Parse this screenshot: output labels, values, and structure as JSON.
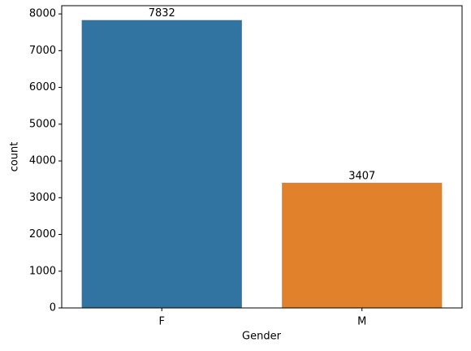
{
  "chart_data": {
    "type": "bar",
    "categories": [
      "F",
      "M"
    ],
    "values": [
      7832,
      3407
    ],
    "colors": [
      "#3274a1",
      "#e1812c"
    ],
    "xlabel": "Gender",
    "ylabel": "count",
    "ylim": [
      0,
      8224
    ],
    "yticks": [
      0,
      1000,
      2000,
      3000,
      4000,
      5000,
      6000,
      7000,
      8000
    ],
    "grid": false
  }
}
